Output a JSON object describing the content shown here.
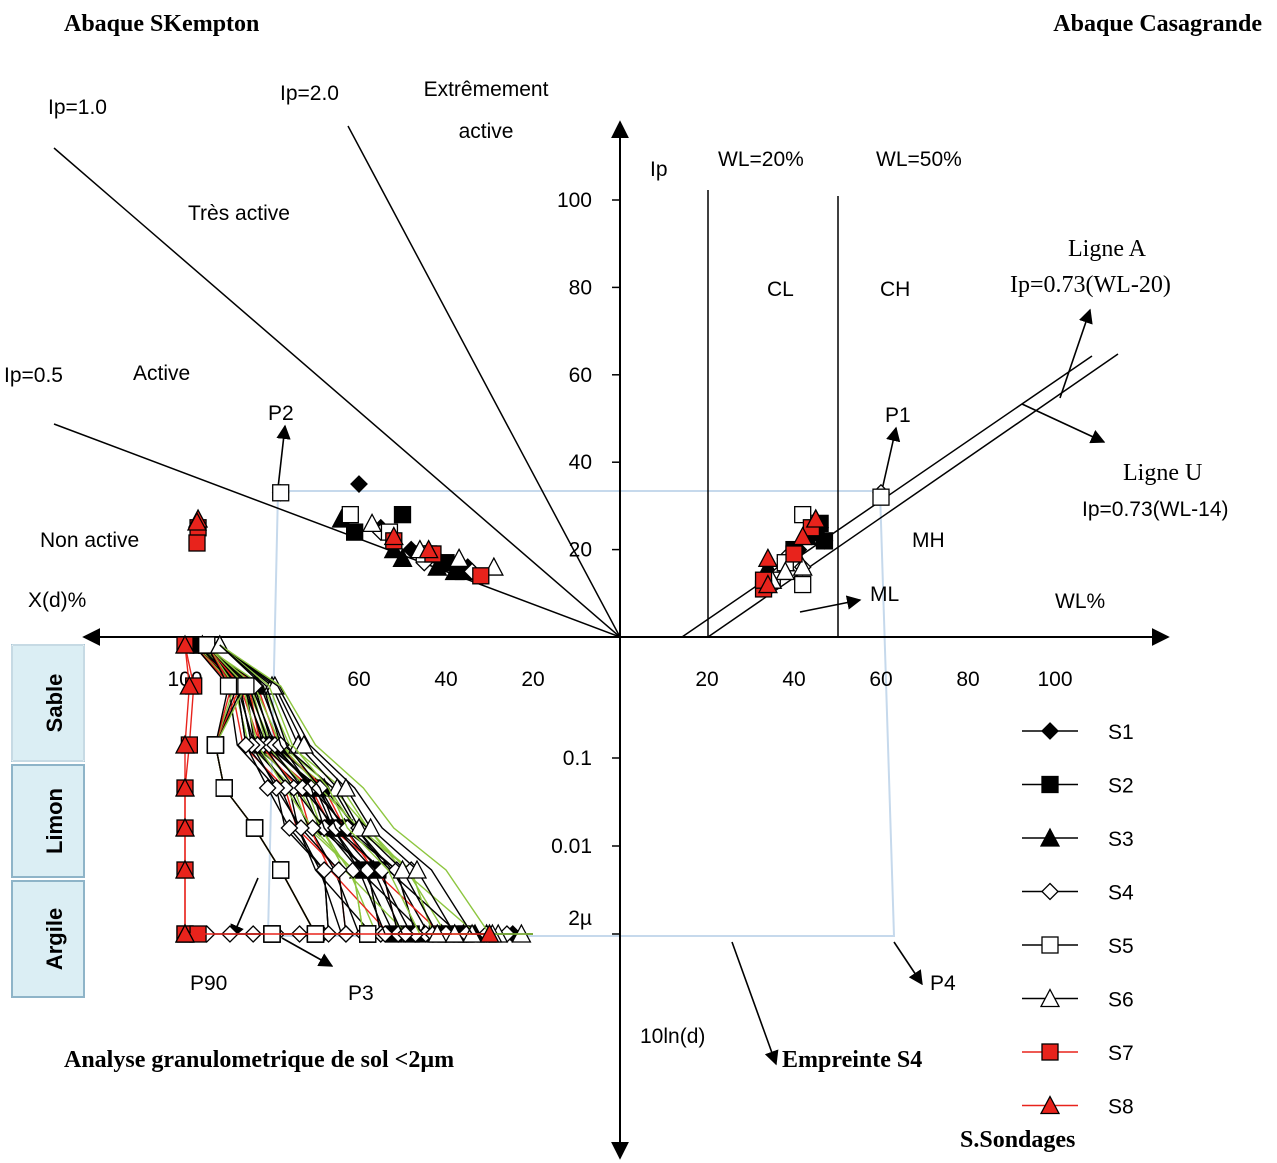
{
  "titles": {
    "skempton": "Abaque SKempton",
    "casagrande": "Abaque Casagrande",
    "granulo": "Analyse granulometrique de sol <2µm",
    "empreinte": "Empreinte S4",
    "sondages": "S.Sondages"
  },
  "skempton_labels": {
    "ip10": "Ip=1.0",
    "ip20": "Ip=2.0",
    "ip05": "Ip=0.5",
    "extreme_1": "Extrêmement",
    "extreme_2": "active",
    "tres": "Très active",
    "active": "Active",
    "non_active": "Non active",
    "xd": "X(d)%"
  },
  "casagrande_labels": {
    "ip_axis": "Ip",
    "wl20": "WL=20%",
    "wl50": "WL=50%",
    "cl": "CL",
    "ch": "CH",
    "mh": "MH",
    "ml": "ML",
    "wl_axis": "WL%",
    "ligne_a_1": "Ligne A",
    "ligne_a_2": "Ip=0.73(WL-20)",
    "ligne_u_1": "Ligne U",
    "ligne_u_2": "Ip=0.73(WL-14)"
  },
  "points": {
    "p1": "P1",
    "p2": "P2",
    "p3": "P3",
    "p4": "P4",
    "p90": "P90"
  },
  "grain_axis_label": "10ln(d)",
  "bands": [
    "Sable",
    "Limon",
    "Argile"
  ],
  "colors": {
    "band_fill": "#dbeef4",
    "band_edge": "#8eb4c8",
    "red": "#e8231c",
    "green": "#8dc63f",
    "frame": "#c6d9ec"
  },
  "chart_data": [
    {
      "type": "scatter",
      "title": "Abaque SKempton",
      "xlabel": "X(d)%",
      "ylabel": "",
      "x_ticks": [
        "100",
        "60",
        "40",
        "20"
      ],
      "y_ticks": [
        "100",
        "80",
        "60",
        "40",
        "20"
      ],
      "xlim": [
        0,
        100
      ],
      "ylim": [
        0,
        100
      ],
      "reference_lines": [
        {
          "name": "Ip=0.5",
          "slope": 0.5
        },
        {
          "name": "Ip=1.0",
          "slope": 1.0
        },
        {
          "name": "Ip=2.0",
          "slope": 2.0
        }
      ],
      "zones": [
        "Non active",
        "Active",
        "Très active",
        "Extrêmement active"
      ],
      "series": [
        {
          "name": "S1",
          "marker": "diamond-filled",
          "points": [
            [
              60,
              35
            ],
            [
              55,
              25
            ],
            [
              48,
              20
            ],
            [
              42,
              18
            ],
            [
              35,
              16
            ]
          ]
        },
        {
          "name": "S2",
          "marker": "square-filled",
          "points": [
            [
              61,
              24
            ],
            [
              50,
              28
            ],
            [
              44,
              19
            ],
            [
              40,
              17
            ],
            [
              36,
              15
            ]
          ]
        },
        {
          "name": "S3",
          "marker": "triangle-filled",
          "points": [
            [
              64,
              27
            ],
            [
              52,
              20
            ],
            [
              50,
              18
            ],
            [
              42,
              16
            ],
            [
              38,
              15
            ]
          ]
        },
        {
          "name": "S4",
          "marker": "diamond-open",
          "points": [
            [
              78,
              33
            ],
            [
              55,
              24
            ],
            [
              45,
              17
            ],
            [
              34,
              15
            ]
          ]
        },
        {
          "name": "S5",
          "marker": "square-open",
          "points": [
            [
              78,
              33
            ],
            [
              62,
              28
            ],
            [
              53,
              24
            ],
            [
              45,
              19
            ]
          ]
        },
        {
          "name": "S6",
          "marker": "triangle-open",
          "points": [
            [
              57,
              26
            ],
            [
              46,
              20
            ],
            [
              37,
              18
            ],
            [
              29,
              16
            ]
          ]
        },
        {
          "name": "S7",
          "marker": "square-red",
          "points": [
            [
              97,
              25
            ],
            [
              52,
              22
            ],
            [
              43,
              19
            ],
            [
              32,
              14
            ]
          ]
        },
        {
          "name": "S8",
          "marker": "triangle-red",
          "points": [
            [
              97,
              27
            ],
            [
              52,
              23
            ],
            [
              44,
              20
            ]
          ]
        }
      ]
    },
    {
      "type": "scatter",
      "title": "Abaque Casagrande",
      "xlabel": "WL%",
      "ylabel": "Ip",
      "x_ticks": [
        "20",
        "40",
        "60",
        "80",
        "100"
      ],
      "y_ticks": [
        "100",
        "80",
        "60",
        "40",
        "20"
      ],
      "xlim": [
        0,
        110
      ],
      "ylim": [
        0,
        110
      ],
      "reference_lines": [
        {
          "name": "WL=20%",
          "x": 20
        },
        {
          "name": "WL=50%",
          "x": 50
        },
        {
          "name": "Ligne A",
          "equation": "Ip=0.73(WL-20)"
        },
        {
          "name": "Ligne U",
          "equation": "Ip=0.73(WL-14)"
        }
      ],
      "zones": [
        "CL",
        "CH",
        "MH",
        "ML"
      ],
      "series": [
        {
          "name": "S1",
          "marker": "diamond-filled",
          "points": [
            [
              44,
              23
            ],
            [
              46,
              25
            ],
            [
              47,
              22
            ],
            [
              41,
              20
            ]
          ]
        },
        {
          "name": "S2",
          "marker": "square-filled",
          "points": [
            [
              46,
              26
            ],
            [
              47,
              22
            ],
            [
              45,
              25
            ],
            [
              40,
              20
            ]
          ]
        },
        {
          "name": "S3",
          "marker": "triangle-filled",
          "points": [
            [
              45,
              27
            ],
            [
              43,
              23
            ],
            [
              38,
              17
            ],
            [
              34,
              16
            ]
          ]
        },
        {
          "name": "S4",
          "marker": "diamond-open",
          "points": [
            [
              60,
              33
            ],
            [
              42,
              16
            ],
            [
              38,
              18
            ],
            [
              36,
              14
            ]
          ]
        },
        {
          "name": "S5",
          "marker": "square-open",
          "points": [
            [
              60,
              32
            ],
            [
              42,
              28
            ],
            [
              42,
              12
            ],
            [
              38,
              17
            ],
            [
              35,
              13
            ]
          ]
        },
        {
          "name": "S6",
          "marker": "triangle-open",
          "points": [
            [
              42,
              16
            ],
            [
              38,
              15
            ],
            [
              35,
              13
            ]
          ]
        },
        {
          "name": "S7",
          "marker": "square-red",
          "points": [
            [
              33,
              11
            ],
            [
              33,
              13
            ],
            [
              40,
              19
            ],
            [
              44,
              25
            ]
          ]
        },
        {
          "name": "S8",
          "marker": "triangle-red",
          "points": [
            [
              34,
              18
            ],
            [
              42,
              23
            ],
            [
              45,
              27
            ],
            [
              34,
              12
            ]
          ]
        }
      ]
    },
    {
      "type": "line",
      "title": "Analyse granulometrique de sol <2µm",
      "xlabel": "X(d)%",
      "ylabel": "10ln(d)",
      "x_ticks": [
        "100",
        "60",
        "40",
        "20"
      ],
      "y_ticks": [
        "0.1",
        "0.01",
        "2µ"
      ],
      "xlim": [
        0,
        100
      ],
      "y_levels": [
        1,
        0.5,
        0.1,
        0.05,
        0.01,
        0.005,
        0.002
      ],
      "series": [
        {
          "name": "S1",
          "marker": "diamond-filled",
          "x_pct": [
            98,
            88,
            84,
            73,
            69,
            58,
            55,
            40,
            30
          ]
        },
        {
          "name": "S2",
          "marker": "square-filled",
          "x_pct": [
            97,
            86,
            82,
            72,
            66,
            59,
            52,
            40,
            42
          ]
        },
        {
          "name": "S3",
          "marker": "triangle-filled",
          "x_pct": [
            96,
            84,
            80,
            70,
            66,
            60,
            45,
            38,
            36
          ]
        },
        {
          "name": "S4",
          "marker": "diamond-open",
          "x_pct": [
            95,
            86,
            82,
            75,
            68,
            58,
            55,
            40,
            79
          ]
        },
        {
          "name": "S5",
          "marker": "square-open",
          "x_pct": [
            95,
            88,
            93,
            91,
            84,
            78,
            70,
            58,
            80
          ]
        },
        {
          "name": "S6",
          "marker": "triangle-open",
          "x_pct": [
            92,
            80,
            74,
            65,
            60,
            50,
            42,
            34,
            28
          ]
        },
        {
          "name": "S7",
          "marker": "square-red",
          "x_pct": [
            100,
            98,
            99,
            100,
            100,
            100,
            100,
            100,
            97
          ]
        },
        {
          "name": "S8",
          "marker": "triangle-red",
          "x_pct": [
            100,
            99,
            100,
            100,
            101,
            100,
            101,
            100,
            30
          ]
        }
      ],
      "annotations": [
        "P90",
        "P3",
        "P4",
        "Empreinte S4"
      ]
    }
  ],
  "legend": [
    "S1",
    "S2",
    "S3",
    "S4",
    "S5",
    "S6",
    "S7",
    "S8"
  ]
}
